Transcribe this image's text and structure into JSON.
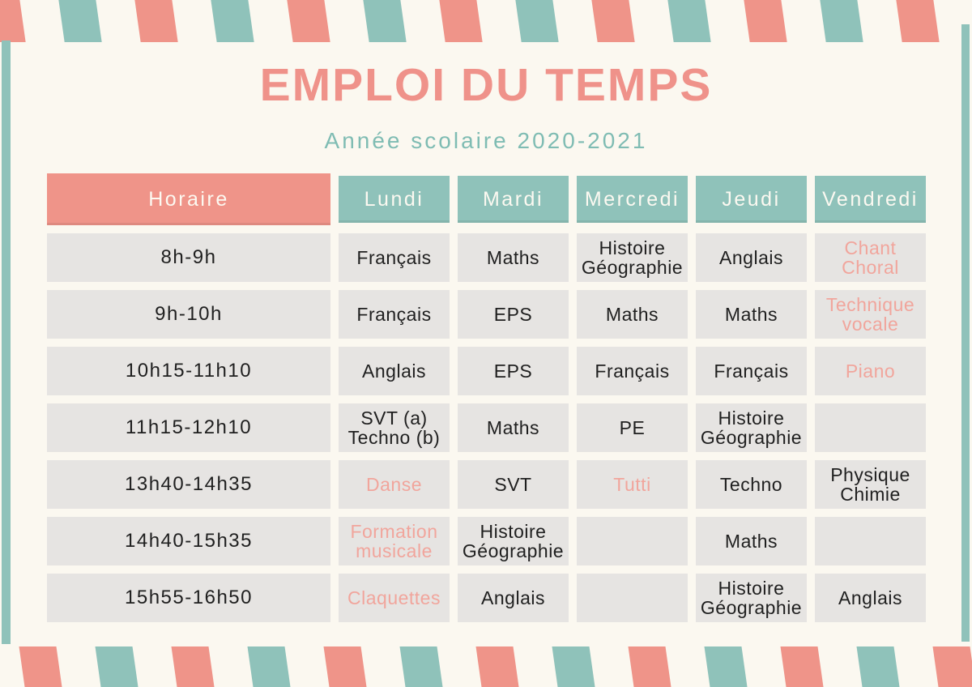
{
  "title": "EMPLOI DU TEMPS",
  "subtitle": "Année scolaire 2020-2021",
  "colors": {
    "coral": "#EF9489",
    "teal": "#8FC2BA",
    "background": "#FBF8F0",
    "cell_gray": "#E6E4E2",
    "coral_cell_text": "#F1A59C",
    "dark_text": "#1F1F1F"
  },
  "table": {
    "header": {
      "time_label": "Horaire",
      "days": [
        "Lundi",
        "Mardi",
        "Mercredi",
        "Jeudi",
        "Vendredi"
      ]
    },
    "rows": [
      {
        "time": "8h-9h",
        "cells": [
          {
            "text": "Français",
            "tone": "dark"
          },
          {
            "text": "Maths",
            "tone": "dark"
          },
          {
            "text": "Histoire\nGéographie",
            "tone": "dark"
          },
          {
            "text": "Anglais",
            "tone": "dark"
          },
          {
            "text": "Chant\nChoral",
            "tone": "coral"
          }
        ]
      },
      {
        "time": "9h-10h",
        "cells": [
          {
            "text": "Français",
            "tone": "dark"
          },
          {
            "text": "EPS",
            "tone": "dark"
          },
          {
            "text": "Maths",
            "tone": "dark"
          },
          {
            "text": "Maths",
            "tone": "dark"
          },
          {
            "text": "Technique\nvocale",
            "tone": "coral"
          }
        ]
      },
      {
        "time": "10h15-11h10",
        "cells": [
          {
            "text": "Anglais",
            "tone": "dark"
          },
          {
            "text": "EPS",
            "tone": "dark"
          },
          {
            "text": "Français",
            "tone": "dark"
          },
          {
            "text": "Français",
            "tone": "dark"
          },
          {
            "text": "Piano",
            "tone": "coral"
          }
        ]
      },
      {
        "time": "11h15-12h10",
        "cells": [
          {
            "text": "SVT (a)\nTechno (b)",
            "tone": "dark"
          },
          {
            "text": "Maths",
            "tone": "dark"
          },
          {
            "text": "PE",
            "tone": "dark"
          },
          {
            "text": "Histoire\nGéographie",
            "tone": "dark"
          },
          {
            "text": "",
            "tone": "empty"
          }
        ]
      },
      {
        "time": "13h40-14h35",
        "cells": [
          {
            "text": "Danse",
            "tone": "coral"
          },
          {
            "text": "SVT",
            "tone": "dark"
          },
          {
            "text": "Tutti",
            "tone": "coral"
          },
          {
            "text": "Techno",
            "tone": "dark"
          },
          {
            "text": "Physique\nChimie",
            "tone": "dark"
          }
        ]
      },
      {
        "time": "14h40-15h35",
        "cells": [
          {
            "text": "Formation\nmusicale",
            "tone": "coral"
          },
          {
            "text": "Histoire\nGéographie",
            "tone": "dark"
          },
          {
            "text": "",
            "tone": "empty"
          },
          {
            "text": "Maths",
            "tone": "dark"
          },
          {
            "text": "",
            "tone": "empty"
          }
        ]
      },
      {
        "time": "15h55-16h50",
        "cells": [
          {
            "text": "Claquettes",
            "tone": "coral"
          },
          {
            "text": "Anglais",
            "tone": "dark"
          },
          {
            "text": "",
            "tone": "empty"
          },
          {
            "text": "Histoire\nGéographie",
            "tone": "dark"
          },
          {
            "text": "Anglais",
            "tone": "dark"
          }
        ]
      }
    ]
  }
}
